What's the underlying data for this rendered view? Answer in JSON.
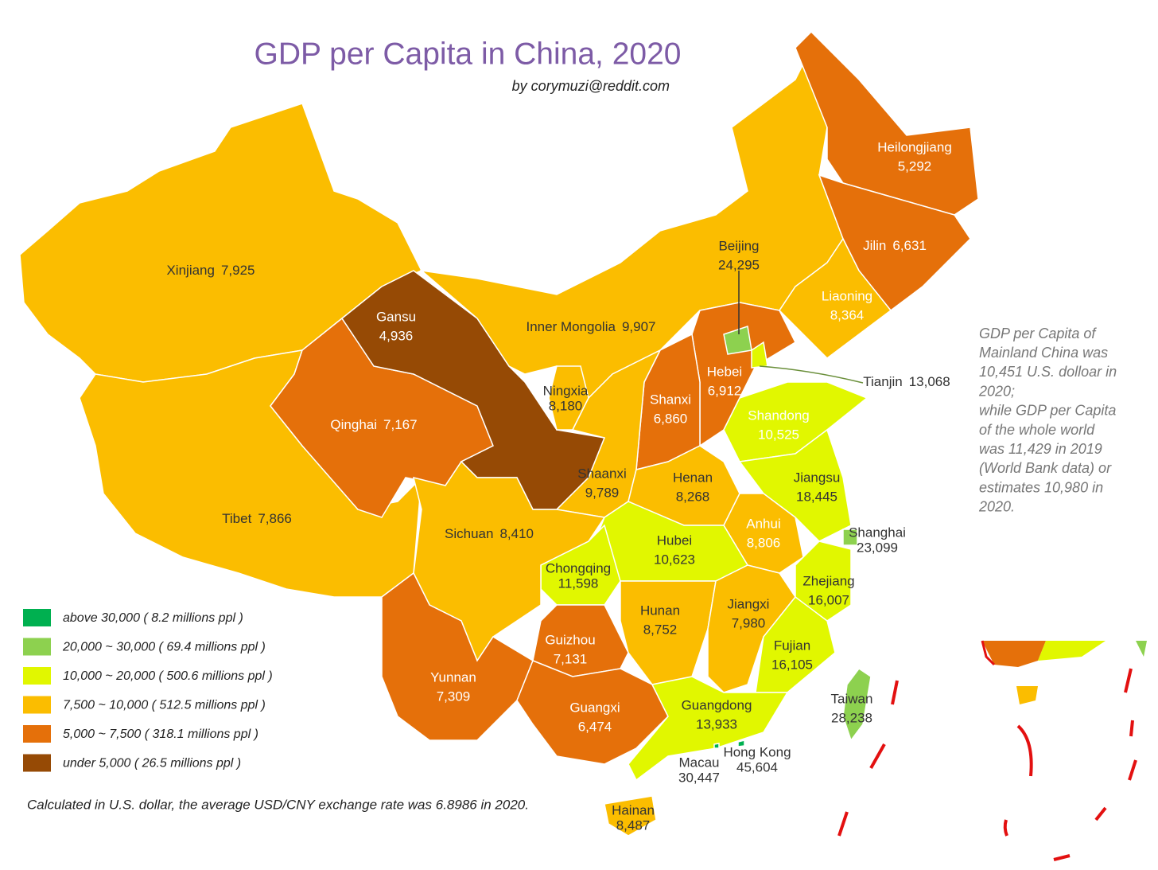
{
  "title": "GDP per Capita in China, 2020",
  "subtitle": "by corymuzi@reddit.com",
  "regions": [
    {
      "name": "Xinjiang",
      "value": "7,925",
      "color": "#fbbd00"
    },
    {
      "name": "Tibet",
      "value": "7,866",
      "color": "#fbbd00"
    },
    {
      "name": "Qinghai",
      "value": "7,167",
      "color": "#e5700a"
    },
    {
      "name": "Gansu",
      "value": "4,936",
      "color": "#964a05"
    },
    {
      "name": "Inner Mongolia",
      "value": "9,907",
      "color": "#fbbd00"
    },
    {
      "name": "Heilongjiang",
      "value": "5,292",
      "color": "#e5700a"
    },
    {
      "name": "Jilin",
      "value": "6,631",
      "color": "#e5700a"
    },
    {
      "name": "Liaoning",
      "value": "8,364",
      "color": "#fbbd00"
    },
    {
      "name": "Hebei",
      "value": "6,912",
      "color": "#e5700a"
    },
    {
      "name": "Beijing",
      "value": "24,295",
      "color": "#8dd14f"
    },
    {
      "name": "Tianjin",
      "value": "13,068",
      "color": "#e1f700"
    },
    {
      "name": "Shanxi",
      "value": "6,860",
      "color": "#e5700a"
    },
    {
      "name": "Shandong",
      "value": "10,525",
      "color": "#e1f700"
    },
    {
      "name": "Ningxia",
      "value": "8,180",
      "color": "#fbbd00"
    },
    {
      "name": "Shaanxi",
      "value": "9,789",
      "color": "#fbbd00"
    },
    {
      "name": "Henan",
      "value": "8,268",
      "color": "#fbbd00"
    },
    {
      "name": "Jiangsu",
      "value": "18,445",
      "color": "#e1f700"
    },
    {
      "name": "Shanghai",
      "value": "23,099",
      "color": "#8dd14f"
    },
    {
      "name": "Anhui",
      "value": "8,806",
      "color": "#fbbd00"
    },
    {
      "name": "Zhejiang",
      "value": "16,007",
      "color": "#e1f700"
    },
    {
      "name": "Hubei",
      "value": "10,623",
      "color": "#e1f700"
    },
    {
      "name": "Chongqing",
      "value": "11,598",
      "color": "#e1f700"
    },
    {
      "name": "Sichuan",
      "value": "8,410",
      "color": "#fbbd00"
    },
    {
      "name": "Hunan",
      "value": "8,752",
      "color": "#fbbd00"
    },
    {
      "name": "Jiangxi",
      "value": "7,980",
      "color": "#fbbd00"
    },
    {
      "name": "Fujian",
      "value": "16,105",
      "color": "#e1f700"
    },
    {
      "name": "Guizhou",
      "value": "7,131",
      "color": "#e5700a"
    },
    {
      "name": "Yunnan",
      "value": "7,309",
      "color": "#e5700a"
    },
    {
      "name": "Guangxi",
      "value": "6,474",
      "color": "#e5700a"
    },
    {
      "name": "Guangdong",
      "value": "13,933",
      "color": "#e1f700"
    },
    {
      "name": "Taiwan",
      "value": "28,238",
      "color": "#8dd14f"
    },
    {
      "name": "Hong Kong",
      "value": "45,604",
      "color": "#00b050"
    },
    {
      "name": "Macau",
      "value": "30,447",
      "color": "#00b050"
    },
    {
      "name": "Hainan",
      "value": "8,487",
      "color": "#fbbd00"
    }
  ],
  "legend": [
    {
      "label": "above 30,000  ( 8.2 millions ppl )",
      "color": "#00b050"
    },
    {
      "label": "20,000 ~ 30,000 ( 69.4 millions ppl )",
      "color": "#8dd14f"
    },
    {
      "label": "10,000 ~ 20,000 ( 500.6 millions ppl )",
      "color": "#e1f700"
    },
    {
      "label": "7,500 ~ 10,000 ( 512.5 millions ppl )",
      "color": "#fbbd00"
    },
    {
      "label": "5,000 ~ 7,500 ( 318.1 millions ppl )",
      "color": "#e5700a"
    },
    {
      "label": "under 5,000 ( 26.5 millions ppl )",
      "color": "#964a05"
    }
  ],
  "note": [
    "GDP per Capita of",
    "Mainland China was",
    "10,451 U.S. dolloar in",
    "2020;",
    "while GDP per Capita",
    "of the whole world",
    "was 11,429 in 2019",
    "(World Bank data) or",
    "estimates 10,980 in",
    "2020."
  ],
  "footnote": "Calculated in U.S. dollar, the average USD/CNY exchange rate was 6.8986 in 2020."
}
